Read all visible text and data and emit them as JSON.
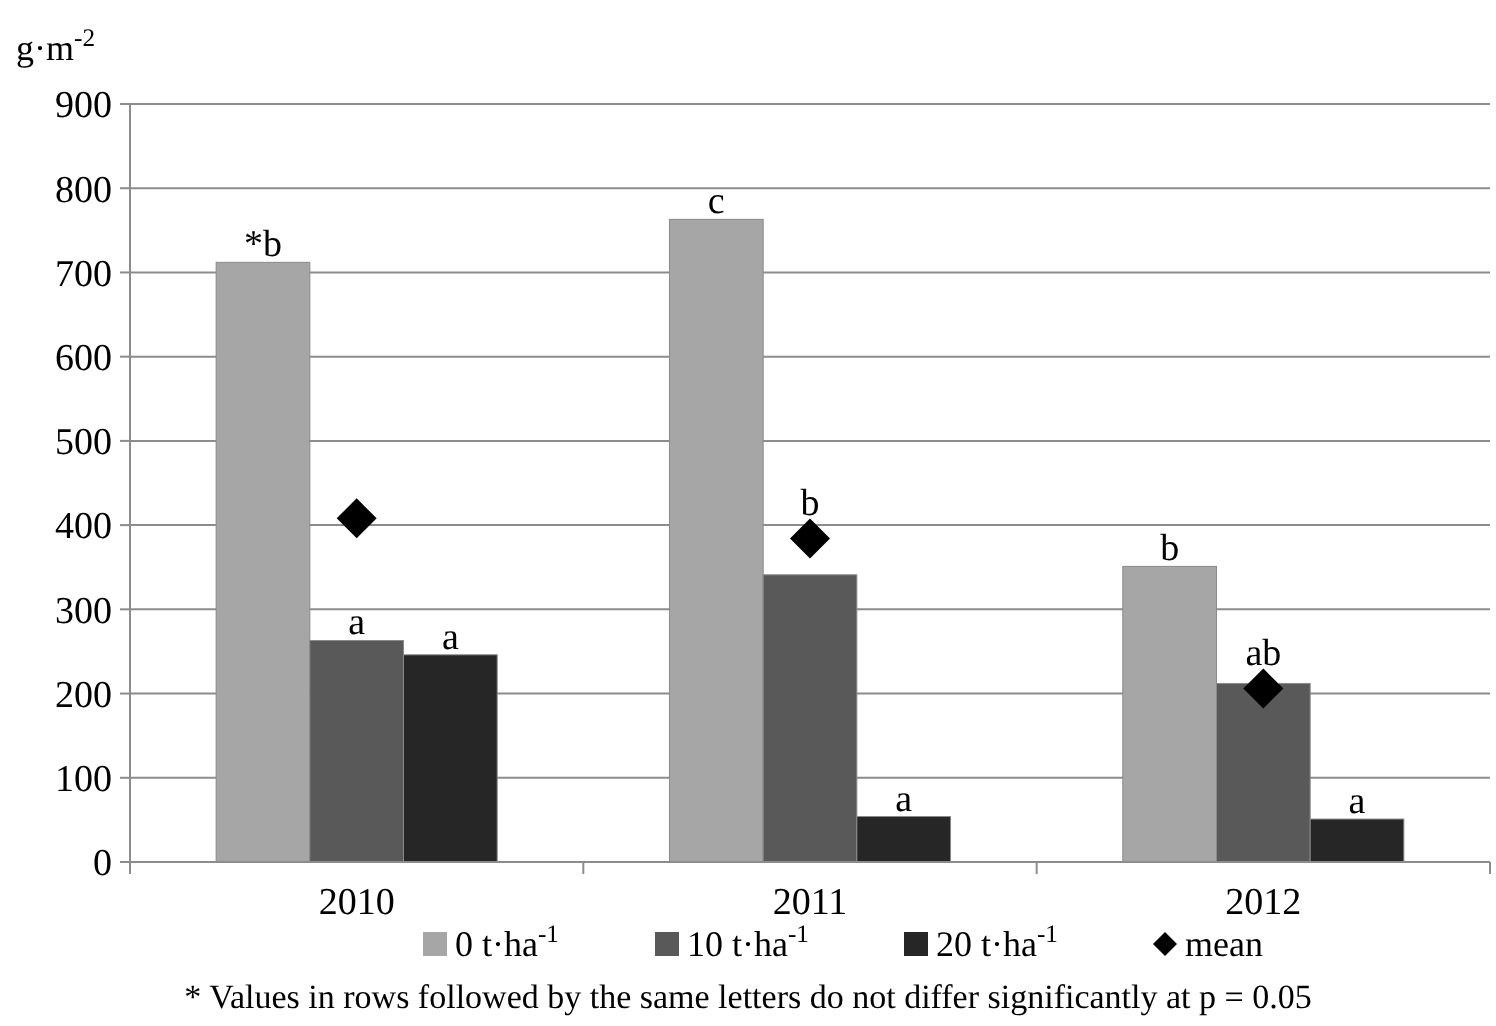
{
  "chart_data": {
    "type": "bar",
    "ylabel": "g·m$^{-2}$",
    "categories": [
      "2010",
      "2011",
      "2012"
    ],
    "series": [
      {
        "name": "0 t·ha$^{-1}$",
        "color": "#a6a6a6",
        "values": [
          712,
          763,
          351
        ],
        "value_labels": [
          "*b",
          "c",
          "b"
        ]
      },
      {
        "name": "10 t·ha$^{-1}$",
        "color": "#595959",
        "values": [
          263,
          341,
          212
        ],
        "value_labels": [
          "a",
          "b",
          "ab"
        ]
      },
      {
        "name": "20 t·ha$^{-1}$",
        "color": "#262626",
        "values": [
          246,
          54,
          51
        ],
        "value_labels": [
          "a",
          "a",
          "a"
        ]
      },
      {
        "name": "mean",
        "type": "scatter",
        "color": "#000000",
        "marker": "diamond",
        "values": [
          408,
          384,
          206
        ]
      }
    ],
    "ylim": [
      0,
      900
    ],
    "yticks": [
      0,
      100,
      200,
      300,
      400,
      500,
      600,
      700,
      800,
      900
    ],
    "grid": "y",
    "legend": "bottom",
    "annotations": [
      "* Values in rows followed by the same letters do not differ significantly at p = 0.05"
    ]
  }
}
